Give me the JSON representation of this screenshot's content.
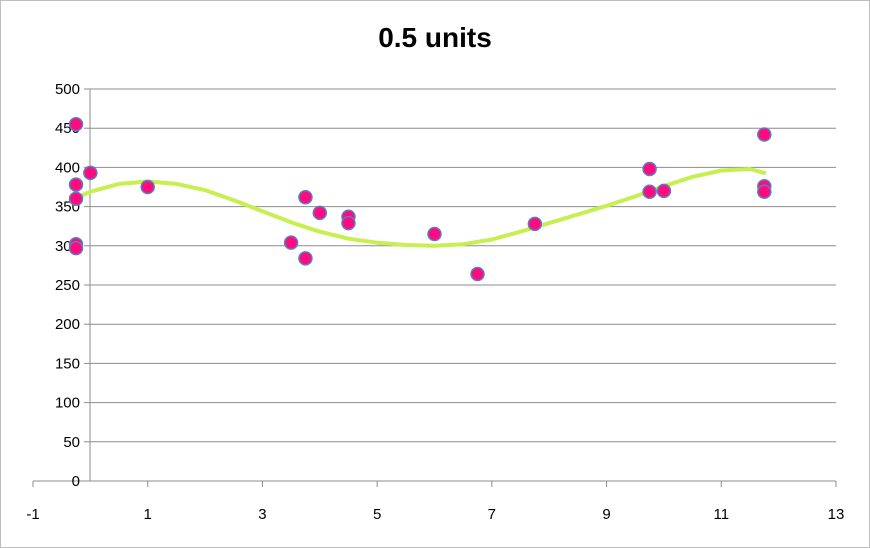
{
  "chart_data": {
    "type": "scatter",
    "title": "0.5 units",
    "xlim": [
      -1,
      13
    ],
    "ylim": [
      0,
      500
    ],
    "x_ticks": [
      "-1",
      "1",
      "3",
      "5",
      "7",
      "9",
      "11",
      "13"
    ],
    "y_ticks": [
      "0",
      "50",
      "100",
      "150",
      "200",
      "250",
      "300",
      "350",
      "400",
      "450",
      "500"
    ],
    "grid": true,
    "legend": "none",
    "series": [
      {
        "points": [
          {
            "x": -0.25,
            "y": 455
          },
          {
            "x": -0.25,
            "y": 378
          },
          {
            "x": -0.25,
            "y": 360
          },
          {
            "x": -0.25,
            "y": 302
          },
          {
            "x": -0.25,
            "y": 297
          },
          {
            "x": 0,
            "y": 393
          },
          {
            "x": 1,
            "y": 375
          },
          {
            "x": 3.5,
            "y": 304
          },
          {
            "x": 3.75,
            "y": 362
          },
          {
            "x": 3.75,
            "y": 284
          },
          {
            "x": 4,
            "y": 342
          },
          {
            "x": 4.5,
            "y": 337
          },
          {
            "x": 4.5,
            "y": 329
          },
          {
            "x": 6,
            "y": 315
          },
          {
            "x": 6.75,
            "y": 264
          },
          {
            "x": 7.75,
            "y": 328
          },
          {
            "x": 9.75,
            "y": 398
          },
          {
            "x": 9.75,
            "y": 369
          },
          {
            "x": 10,
            "y": 370
          },
          {
            "x": 11.75,
            "y": 442
          },
          {
            "x": 11.75,
            "y": 376
          },
          {
            "x": 11.75,
            "y": 369
          }
        ],
        "marker_fill": "#ff0a7f",
        "marker_stroke": "#5a7fbf"
      }
    ],
    "trendline": {
      "color": "#c6ef4f",
      "points": [
        {
          "x": -0.25,
          "y": 361
        },
        {
          "x": 0,
          "y": 369
        },
        {
          "x": 0.5,
          "y": 379
        },
        {
          "x": 1,
          "y": 382
        },
        {
          "x": 1.5,
          "y": 379
        },
        {
          "x": 2,
          "y": 371
        },
        {
          "x": 2.5,
          "y": 358
        },
        {
          "x": 3,
          "y": 344
        },
        {
          "x": 3.5,
          "y": 330
        },
        {
          "x": 4,
          "y": 318
        },
        {
          "x": 4.5,
          "y": 309
        },
        {
          "x": 5,
          "y": 304
        },
        {
          "x": 5.5,
          "y": 301
        },
        {
          "x": 6,
          "y": 300
        },
        {
          "x": 6.5,
          "y": 302
        },
        {
          "x": 7,
          "y": 308
        },
        {
          "x": 7.5,
          "y": 318
        },
        {
          "x": 8,
          "y": 329
        },
        {
          "x": 8.5,
          "y": 340
        },
        {
          "x": 9,
          "y": 351
        },
        {
          "x": 9.5,
          "y": 363
        },
        {
          "x": 10,
          "y": 376
        },
        {
          "x": 10.5,
          "y": 388
        },
        {
          "x": 11,
          "y": 396
        },
        {
          "x": 11.5,
          "y": 398
        },
        {
          "x": 11.75,
          "y": 393
        }
      ]
    }
  }
}
